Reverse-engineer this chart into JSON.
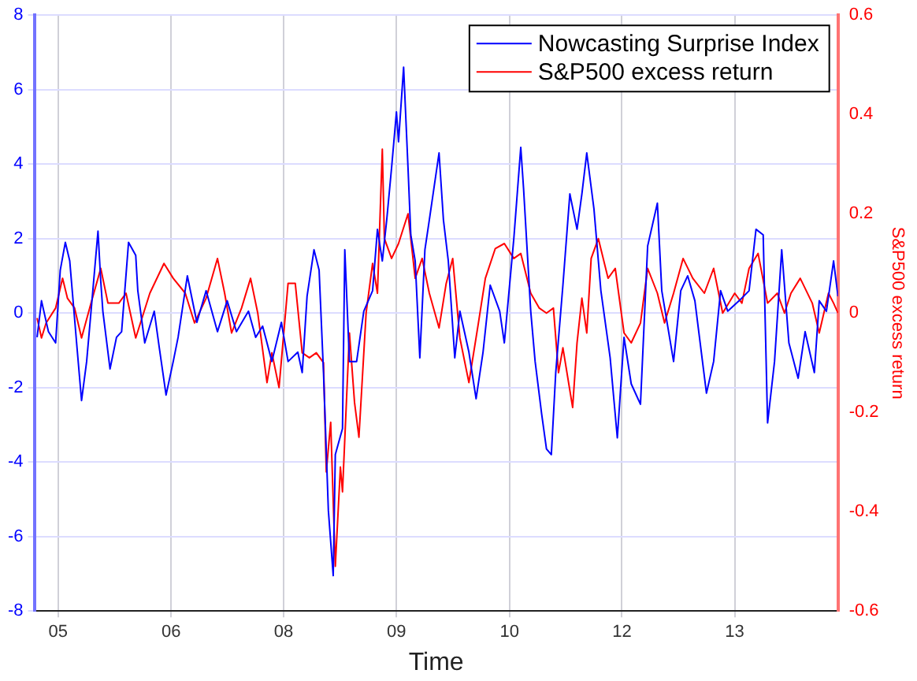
{
  "chart_data": {
    "type": "line",
    "xlabel": "Time",
    "y2label": "S&P500 excess return",
    "xlim": [
      "2005-03-20",
      "2014-09-20"
    ],
    "xticks": [
      {
        "value": "2005-07-01",
        "label": "05"
      },
      {
        "value": "2006-11-01",
        "label": "06"
      },
      {
        "value": "2008-03-01",
        "label": "08"
      },
      {
        "value": "2009-07-01",
        "label": "09"
      },
      {
        "value": "2010-11-01",
        "label": "10"
      },
      {
        "value": "2012-03-01",
        "label": "12"
      },
      {
        "value": "2013-07-01",
        "label": "13"
      }
    ],
    "ylim": [
      -8,
      8
    ],
    "yticks": [
      -8,
      -6,
      -4,
      -2,
      0,
      2,
      4,
      6,
      8
    ],
    "y2lim": [
      -0.6,
      0.6
    ],
    "y2ticks": [
      -0.6,
      -0.4,
      -0.2,
      0,
      0.2,
      0.4,
      0.6
    ],
    "grid": true,
    "legend": "top right",
    "marker": "none",
    "line_style": "solid",
    "series": [
      {
        "name": "Nowcasting Surprise Index",
        "color": "#0000ff",
        "x": [
          "2005-04-01",
          "2005-04-20",
          "2005-05-20",
          "2005-06-20",
          "2005-07-10",
          "2005-08-01",
          "2005-08-20",
          "2005-09-20",
          "2005-10-10",
          "2005-11-01",
          "2005-11-20",
          "2005-12-20",
          "2006-01-01",
          "2006-01-10",
          "2006-02-10",
          "2006-03-10",
          "2006-04-01",
          "2006-05-01",
          "2006-06-01",
          "2006-06-10",
          "2006-07-10",
          "2006-08-20",
          "2006-09-10",
          "2006-10-10",
          "2006-11-10",
          "2006-12-01",
          "2007-01-10",
          "2007-02-20",
          "2007-04-01",
          "2007-05-20",
          "2007-07-01",
          "2007-08-10",
          "2007-10-01",
          "2007-11-01",
          "2007-12-01",
          "2008-01-10",
          "2008-02-20",
          "2008-03-20",
          "2008-05-01",
          "2008-05-20",
          "2008-06-10",
          "2008-07-10",
          "2008-08-01",
          "2008-08-20",
          "2008-09-10",
          "2008-10-01",
          "2008-10-10",
          "2008-11-10",
          "2008-11-20",
          "2008-12-10",
          "2009-01-10",
          "2009-02-10",
          "2009-03-20",
          "2009-04-10",
          "2009-05-01",
          "2009-05-20",
          "2009-06-10",
          "2009-07-01",
          "2009-07-10",
          "2009-08-01",
          "2009-08-20",
          "2009-09-01",
          "2009-09-20",
          "2009-10-10",
          "2009-11-01",
          "2009-11-20",
          "2010-01-01",
          "2010-01-20",
          "2010-02-10",
          "2010-03-10",
          "2010-04-01",
          "2010-05-10",
          "2010-06-10",
          "2010-07-10",
          "2010-08-10",
          "2010-09-20",
          "2010-10-10",
          "2010-11-20",
          "2010-12-20",
          "2011-01-01",
          "2011-02-01",
          "2011-02-20",
          "2011-03-20",
          "2011-04-10",
          "2011-05-01",
          "2011-05-20",
          "2011-06-20",
          "2011-07-20",
          "2011-08-20",
          "2011-09-10",
          "2011-10-01",
          "2011-11-01",
          "2011-12-01",
          "2012-01-10",
          "2012-02-10",
          "2012-03-10",
          "2012-04-10",
          "2012-05-20",
          "2012-06-20",
          "2012-08-01",
          "2012-08-20",
          "2012-10-10",
          "2012-11-10",
          "2012-12-10",
          "2013-01-10",
          "2013-03-01",
          "2013-04-01",
          "2013-05-01",
          "2013-06-01",
          "2013-07-20",
          "2013-09-01",
          "2013-10-01",
          "2013-11-01",
          "2013-11-20",
          "2013-12-20",
          "2014-01-20",
          "2014-02-20",
          "2014-04-01",
          "2014-05-01",
          "2014-06-10",
          "2014-07-01",
          "2014-08-01",
          "2014-09-01",
          "2014-09-20"
        ],
        "values": [
          -0.65,
          0.33,
          -0.5,
          -0.8,
          1.15,
          1.9,
          1.4,
          -0.9,
          -2.35,
          -1.3,
          0.05,
          2.2,
          0.85,
          0.05,
          -1.5,
          -0.65,
          -0.5,
          1.9,
          1.55,
          0.6,
          -0.8,
          0.05,
          -0.9,
          -2.2,
          -1.3,
          -0.65,
          1.0,
          -0.25,
          0.6,
          -0.5,
          0.33,
          -0.5,
          0.05,
          -0.65,
          -0.35,
          -1.3,
          -0.25,
          -1.3,
          -1.05,
          -1.6,
          0.45,
          1.7,
          1.15,
          -1.6,
          -5.3,
          -7.05,
          -3.8,
          -3.1,
          1.7,
          -1.3,
          -1.3,
          0.05,
          0.6,
          2.25,
          1.4,
          2.5,
          3.9,
          5.4,
          4.6,
          6.6,
          3.9,
          2.1,
          1.4,
          -1.2,
          1.7,
          2.5,
          4.3,
          2.5,
          1.4,
          -1.2,
          0.05,
          -1.05,
          -2.3,
          -1.05,
          0.75,
          0.05,
          -0.8,
          2.0,
          4.45,
          3.35,
          0.05,
          -1.3,
          -2.7,
          -3.65,
          -3.8,
          -1.6,
          0.75,
          3.2,
          2.25,
          3.2,
          4.3,
          2.8,
          0.6,
          -1.2,
          -3.35,
          -0.65,
          -1.9,
          -2.45,
          1.8,
          2.95,
          0.6,
          -1.3,
          0.6,
          1.0,
          0.33,
          -2.15,
          -1.3,
          0.6,
          0.05,
          0.33,
          0.6,
          2.25,
          2.1,
          -2.95,
          -1.3,
          1.7,
          -0.8,
          -1.75,
          -0.5,
          -1.6,
          0.33,
          0.05,
          1.4,
          0.45
        ]
      },
      {
        "name": "S&P500 excess return",
        "color": "#ff0000",
        "axis": "y2",
        "x": [
          "2005-04-01",
          "2005-04-20",
          "2005-05-10",
          "2005-06-20",
          "2005-07-20",
          "2005-08-10",
          "2005-09-10",
          "2005-10-10",
          "2005-11-20",
          "2006-01-01",
          "2006-02-01",
          "2006-03-20",
          "2006-04-20",
          "2006-06-01",
          "2006-08-01",
          "2006-10-01",
          "2006-11-10",
          "2007-01-01",
          "2007-02-10",
          "2007-04-01",
          "2007-05-20",
          "2007-06-20",
          "2007-07-20",
          "2007-09-01",
          "2007-10-10",
          "2007-11-10",
          "2007-12-20",
          "2008-01-10",
          "2008-02-10",
          "2008-03-20",
          "2008-04-20",
          "2008-05-20",
          "2008-06-20",
          "2008-07-20",
          "2008-08-20",
          "2008-09-01",
          "2008-09-20",
          "2008-10-10",
          "2008-11-01",
          "2008-11-10",
          "2008-12-10",
          "2009-01-01",
          "2009-01-20",
          "2009-02-20",
          "2009-03-20",
          "2009-04-10",
          "2009-05-01",
          "2009-05-10",
          "2009-06-10",
          "2009-07-10",
          "2009-08-20",
          "2009-09-20",
          "2009-10-20",
          "2009-11-20",
          "2010-01-01",
          "2010-02-01",
          "2010-03-01",
          "2010-04-01",
          "2010-05-10",
          "2010-06-20",
          "2010-07-20",
          "2010-09-01",
          "2010-10-10",
          "2010-11-20",
          "2010-12-20",
          "2011-02-01",
          "2011-03-10",
          "2011-04-10",
          "2011-05-10",
          "2011-06-01",
          "2011-06-20",
          "2011-08-01",
          "2011-08-20",
          "2011-09-10",
          "2011-10-01",
          "2011-10-20",
          "2011-11-20",
          "2012-01-01",
          "2012-02-01",
          "2012-03-10",
          "2012-04-10",
          "2012-05-20",
          "2012-06-20",
          "2012-08-01",
          "2012-09-01",
          "2012-10-10",
          "2012-11-20",
          "2013-01-01",
          "2013-02-20",
          "2013-04-01",
          "2013-05-10",
          "2013-07-01",
          "2013-08-01",
          "2013-09-01",
          "2013-10-10",
          "2013-11-20",
          "2014-01-01",
          "2014-02-01",
          "2014-03-01",
          "2014-04-10",
          "2014-06-01",
          "2014-07-01",
          "2014-08-10",
          "2014-09-01",
          "2014-09-20"
        ],
        "values": [
          -0.01,
          -0.05,
          -0.02,
          0.01,
          0.07,
          0.03,
          0.01,
          -0.05,
          0.02,
          0.09,
          0.02,
          0.02,
          0.04,
          -0.05,
          0.04,
          0.1,
          0.07,
          0.04,
          -0.02,
          0.03,
          0.11,
          0.04,
          -0.04,
          0.01,
          0.07,
          0,
          -0.14,
          -0.08,
          -0.15,
          0.06,
          0.06,
          -0.08,
          -0.09,
          -0.08,
          -0.1,
          -0.32,
          -0.22,
          -0.51,
          -0.31,
          -0.36,
          -0.04,
          -0.18,
          -0.25,
          0,
          0.1,
          0.04,
          0.33,
          0.15,
          0.11,
          0.14,
          0.2,
          0.07,
          0.11,
          0.04,
          -0.03,
          0.06,
          0.11,
          -0.05,
          -0.14,
          -0.02,
          0.07,
          0.13,
          0.14,
          0.11,
          0.12,
          0.04,
          0.01,
          0,
          0.01,
          -0.12,
          -0.07,
          -0.19,
          -0.06,
          0.03,
          -0.04,
          0.11,
          0.15,
          0.07,
          0.09,
          -0.04,
          -0.06,
          -0.02,
          0.09,
          0.04,
          -0.02,
          0.04,
          0.11,
          0.07,
          0.04,
          0.09,
          0,
          0.04,
          0.02,
          0.09,
          0.12,
          0.02,
          0.04,
          0,
          0.04,
          0.07,
          0.02,
          -0.04,
          0.04,
          0.02,
          0
        ]
      }
    ]
  }
}
